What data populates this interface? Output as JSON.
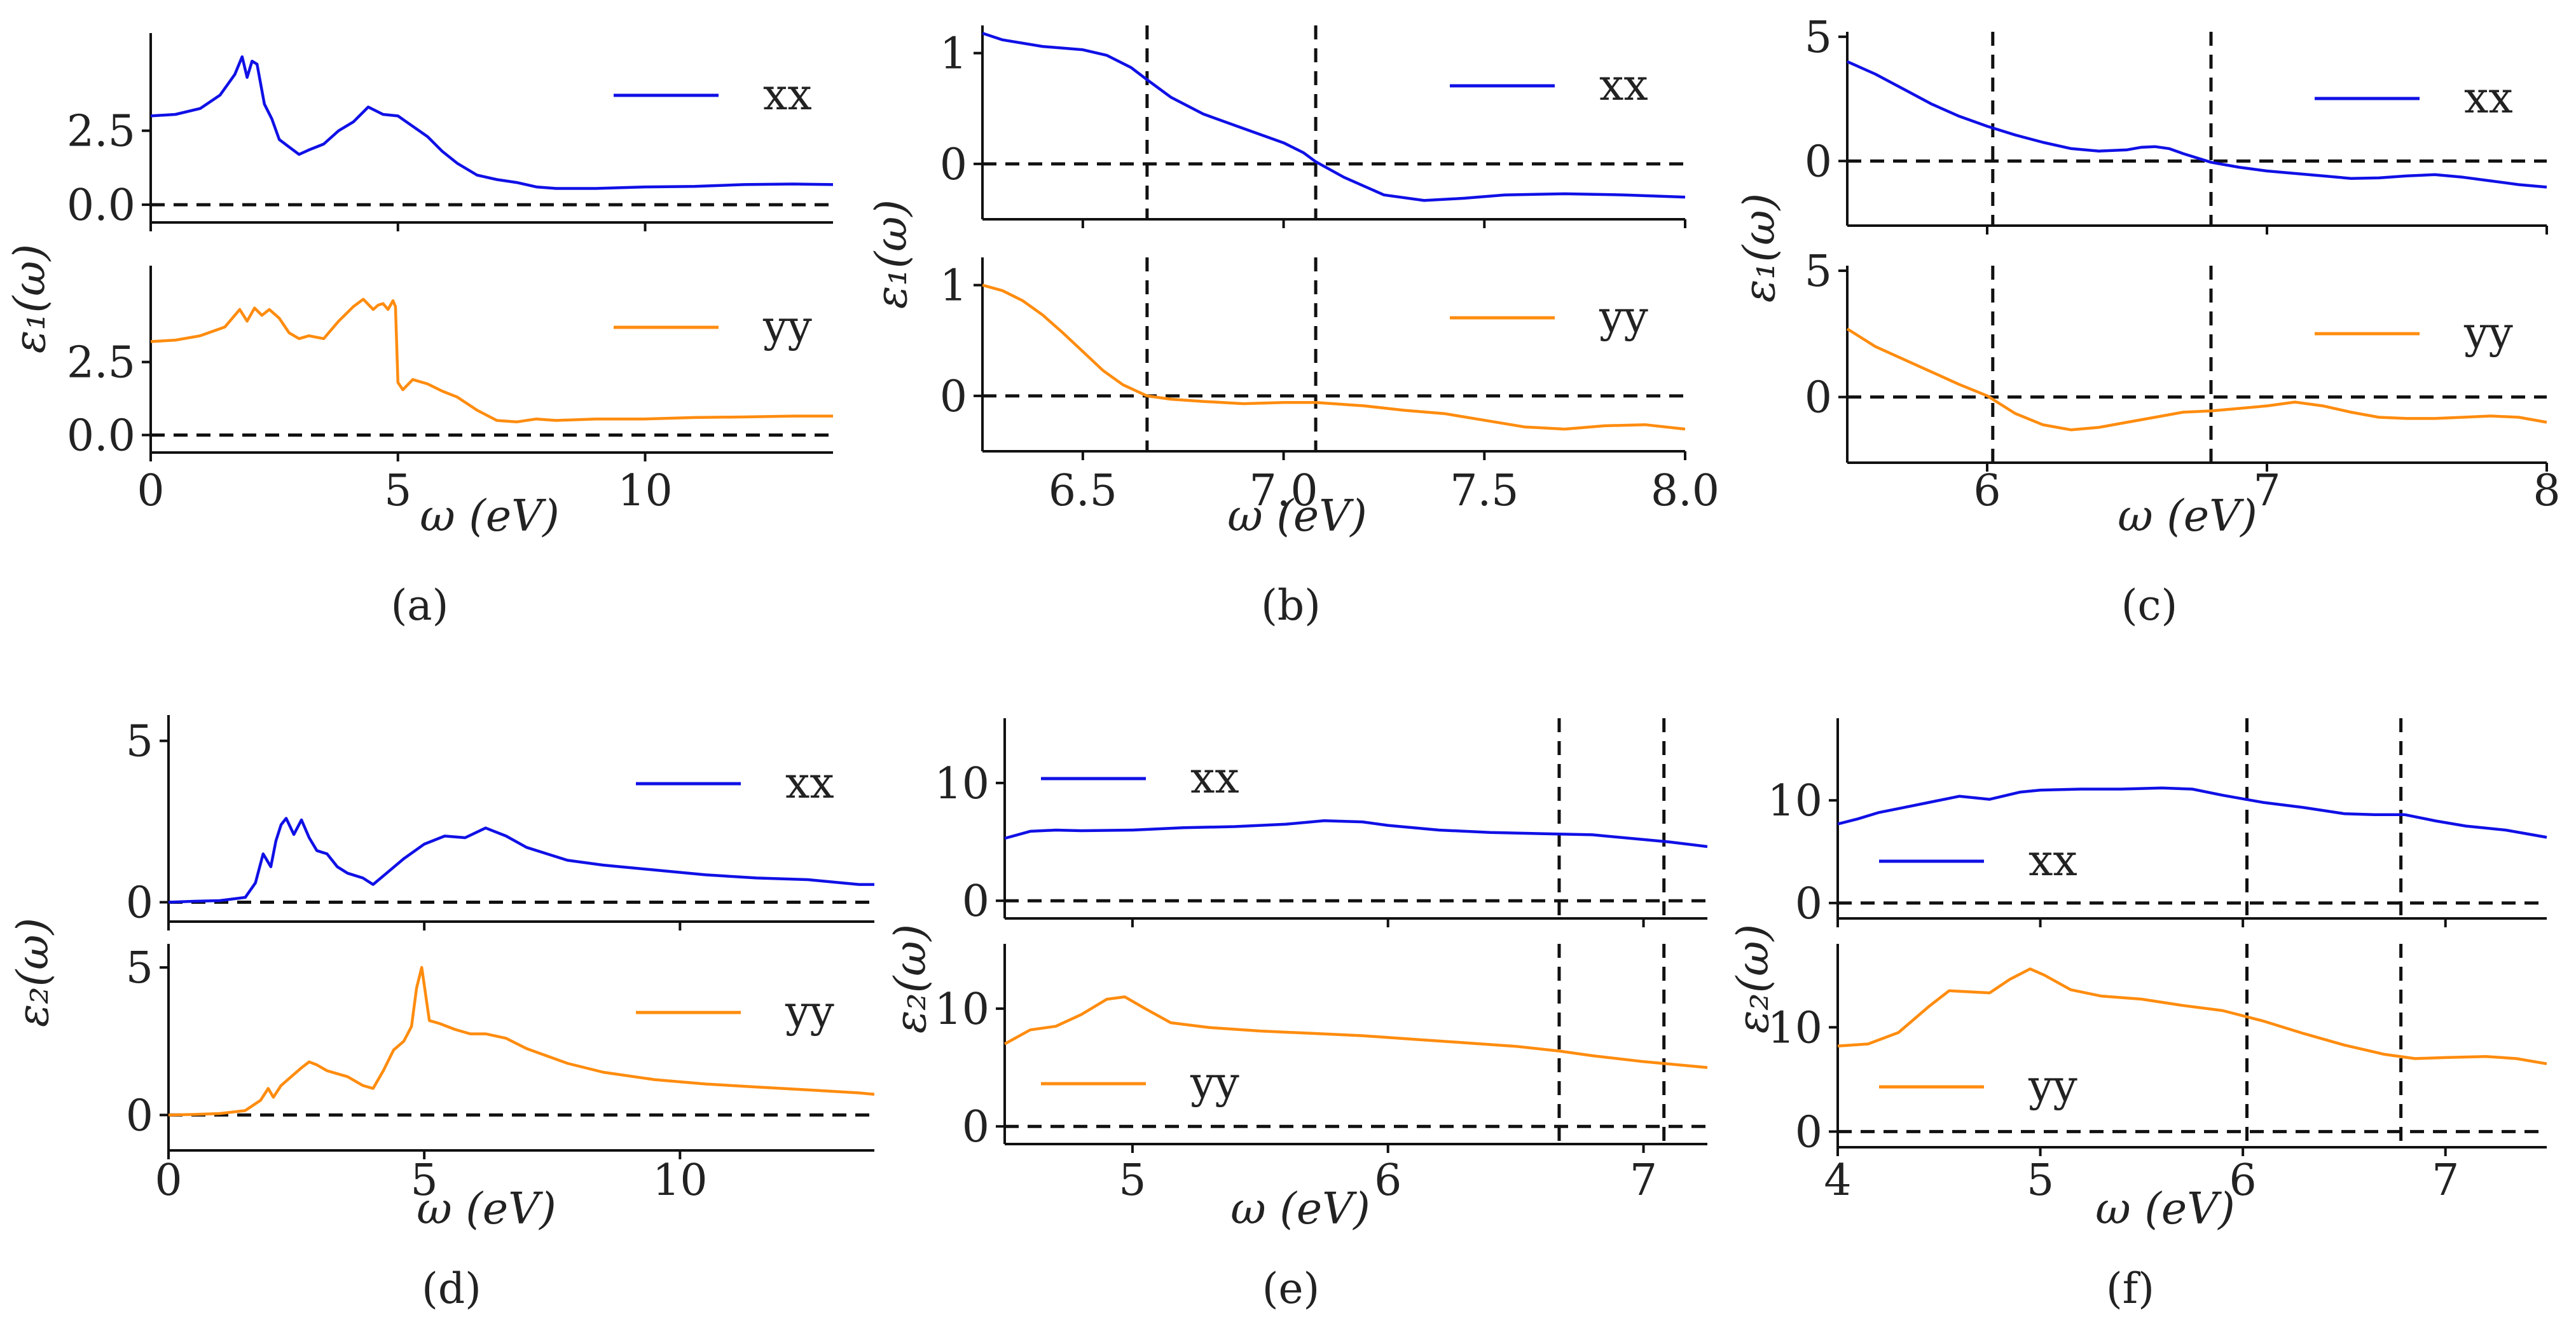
{
  "colors": {
    "xx": "#1010e6",
    "yy": "#ff8c0f",
    "axis": "#111111",
    "dash": "#111111"
  },
  "labels": {
    "eps1": "ε₁(ω)",
    "eps2": "ε₂(ω)",
    "omega": "ω (eV)"
  },
  "chart_data": [
    {
      "id": "a",
      "caption": "(a)",
      "type": "line",
      "xlim": [
        0,
        13.8
      ],
      "xticks": [
        "0",
        "5",
        "10"
      ],
      "xtick_values": [
        0,
        5,
        10
      ],
      "xlabel": "ω (eV)",
      "ylabel": "ε₁(ω)",
      "vlines": [],
      "subplots": [
        {
          "series": "xx",
          "legend": "xx",
          "ylim": [
            -0.6,
            5.8
          ],
          "yticks": [
            "0.0",
            "2.5"
          ],
          "ytick_values": [
            0,
            2.5
          ],
          "x": [
            0,
            0.5,
            1,
            1.4,
            1.7,
            1.85,
            1.95,
            2.05,
            2.15,
            2.3,
            2.45,
            2.6,
            2.8,
            3.0,
            3.2,
            3.5,
            3.8,
            4.1,
            4.4,
            4.7,
            5.0,
            5.3,
            5.6,
            5.9,
            6.2,
            6.6,
            7.0,
            7.4,
            7.8,
            8.2,
            9,
            10,
            11,
            12,
            13,
            13.8
          ],
          "y": [
            3.0,
            3.05,
            3.25,
            3.7,
            4.4,
            5.0,
            4.3,
            4.85,
            4.75,
            3.4,
            2.9,
            2.2,
            1.95,
            1.7,
            1.85,
            2.05,
            2.5,
            2.8,
            3.3,
            3.05,
            3.0,
            2.65,
            2.3,
            1.8,
            1.4,
            1.0,
            0.85,
            0.75,
            0.6,
            0.55,
            0.55,
            0.6,
            0.62,
            0.68,
            0.7,
            0.68
          ]
        },
        {
          "series": "yy",
          "legend": "yy",
          "ylim": [
            -0.6,
            5.8
          ],
          "yticks": [
            "0.0",
            "2.5"
          ],
          "ytick_values": [
            0,
            2.5
          ],
          "x": [
            0,
            0.5,
            1,
            1.5,
            1.8,
            1.95,
            2.1,
            2.25,
            2.4,
            2.6,
            2.8,
            3.0,
            3.2,
            3.5,
            3.8,
            4.1,
            4.3,
            4.5,
            4.6,
            4.7,
            4.8,
            4.9,
            4.95,
            5.0,
            5.1,
            5.3,
            5.6,
            5.9,
            6.2,
            6.6,
            7.0,
            7.4,
            7.8,
            8.2,
            9,
            10,
            11,
            12,
            13,
            13.8
          ],
          "y": [
            3.2,
            3.25,
            3.4,
            3.7,
            4.3,
            3.9,
            4.35,
            4.1,
            4.3,
            4.0,
            3.5,
            3.3,
            3.4,
            3.3,
            3.9,
            4.4,
            4.65,
            4.3,
            4.45,
            4.5,
            4.3,
            4.6,
            4.4,
            1.8,
            1.55,
            1.9,
            1.75,
            1.5,
            1.3,
            0.85,
            0.5,
            0.45,
            0.55,
            0.5,
            0.55,
            0.55,
            0.6,
            0.62,
            0.65,
            0.65
          ]
        }
      ]
    },
    {
      "id": "b",
      "caption": "(b)",
      "type": "line",
      "xlim": [
        6.25,
        8.0
      ],
      "xticks": [
        "6.5",
        "7.0",
        "7.5",
        "8.0"
      ],
      "xtick_values": [
        6.5,
        7.0,
        7.5,
        8.0
      ],
      "xlabel": "ω (eV)",
      "ylabel": "ε₁(ω)",
      "vlines": [
        6.66,
        7.08
      ],
      "subplots": [
        {
          "series": "xx",
          "legend": "xx",
          "ylim": [
            -0.5,
            1.25
          ],
          "yticks": [
            "0",
            "1"
          ],
          "ytick_values": [
            0,
            1
          ],
          "x": [
            6.25,
            6.3,
            6.4,
            6.5,
            6.56,
            6.62,
            6.66,
            6.72,
            6.8,
            6.9,
            7.0,
            7.05,
            7.08,
            7.15,
            7.25,
            7.35,
            7.45,
            7.55,
            7.7,
            7.85,
            8.0
          ],
          "y": [
            1.18,
            1.12,
            1.06,
            1.03,
            0.98,
            0.87,
            0.76,
            0.6,
            0.45,
            0.32,
            0.19,
            0.1,
            0.02,
            -0.12,
            -0.28,
            -0.33,
            -0.31,
            -0.28,
            -0.27,
            -0.28,
            -0.3
          ]
        },
        {
          "series": "yy",
          "legend": "yy",
          "ylim": [
            -0.5,
            1.25
          ],
          "yticks": [
            "0",
            "1"
          ],
          "ytick_values": [
            0,
            1
          ],
          "x": [
            6.25,
            6.3,
            6.35,
            6.4,
            6.45,
            6.5,
            6.55,
            6.6,
            6.66,
            6.72,
            6.8,
            6.9,
            7.0,
            7.08,
            7.2,
            7.3,
            7.4,
            7.5,
            7.6,
            7.7,
            7.8,
            7.9,
            8.0
          ],
          "y": [
            1.0,
            0.95,
            0.86,
            0.73,
            0.57,
            0.4,
            0.23,
            0.1,
            0.0,
            -0.03,
            -0.05,
            -0.07,
            -0.06,
            -0.06,
            -0.09,
            -0.13,
            -0.16,
            -0.22,
            -0.28,
            -0.3,
            -0.27,
            -0.26,
            -0.3
          ]
        }
      ]
    },
    {
      "id": "c",
      "caption": "(c)",
      "type": "line",
      "xlim": [
        5.5,
        8.0
      ],
      "xticks": [
        "6",
        "7",
        "8"
      ],
      "xtick_values": [
        6,
        7,
        8
      ],
      "xlabel": "ω (eV)",
      "ylabel": "ε₁(ω)",
      "vlines": [
        6.02,
        6.8
      ],
      "subplots": [
        {
          "series": "xx",
          "legend": "xx",
          "ylim": [
            -2.6,
            5.2
          ],
          "yticks": [
            "0",
            "5"
          ],
          "ytick_values": [
            0,
            5
          ],
          "x": [
            5.5,
            5.6,
            5.7,
            5.8,
            5.9,
            6.0,
            6.1,
            6.2,
            6.3,
            6.4,
            6.5,
            6.55,
            6.6,
            6.65,
            6.7,
            6.8,
            6.9,
            7.0,
            7.1,
            7.2,
            7.3,
            7.4,
            7.5,
            7.6,
            7.7,
            7.8,
            7.9,
            8.0
          ],
          "y": [
            4.0,
            3.5,
            2.9,
            2.3,
            1.8,
            1.4,
            1.05,
            0.75,
            0.5,
            0.4,
            0.45,
            0.55,
            0.58,
            0.5,
            0.3,
            -0.05,
            -0.25,
            -0.4,
            -0.5,
            -0.6,
            -0.7,
            -0.68,
            -0.6,
            -0.55,
            -0.65,
            -0.8,
            -0.95,
            -1.05
          ]
        },
        {
          "series": "yy",
          "legend": "yy",
          "ylim": [
            -2.6,
            5.2
          ],
          "yticks": [
            "0",
            "5"
          ],
          "ytick_values": [
            0,
            5
          ],
          "x": [
            5.5,
            5.6,
            5.7,
            5.8,
            5.9,
            6.0,
            6.05,
            6.1,
            6.2,
            6.3,
            6.4,
            6.5,
            6.6,
            6.7,
            6.8,
            6.9,
            7.0,
            7.1,
            7.2,
            7.3,
            7.4,
            7.5,
            7.6,
            7.7,
            7.8,
            7.9,
            8.0
          ],
          "y": [
            2.7,
            2.0,
            1.5,
            1.0,
            0.5,
            0.05,
            -0.3,
            -0.65,
            -1.1,
            -1.3,
            -1.2,
            -1.0,
            -0.8,
            -0.6,
            -0.55,
            -0.45,
            -0.35,
            -0.2,
            -0.35,
            -0.6,
            -0.8,
            -0.85,
            -0.85,
            -0.8,
            -0.75,
            -0.8,
            -1.0
          ]
        }
      ]
    },
    {
      "id": "d",
      "caption": "(d)",
      "type": "line",
      "xlim": [
        0,
        13.8
      ],
      "xticks": [
        "0",
        "5",
        "10"
      ],
      "xtick_values": [
        0,
        5,
        10
      ],
      "xlabel": "ω (eV)",
      "ylabel": "ε₂(ω)",
      "vlines": [],
      "subplots": [
        {
          "series": "xx",
          "legend": "xx",
          "ylim": [
            -0.6,
            5.8
          ],
          "yticks": [
            "0",
            "5"
          ],
          "ytick_values": [
            0,
            5
          ],
          "x": [
            0,
            0.5,
            1.0,
            1.5,
            1.7,
            1.85,
            2.0,
            2.1,
            2.2,
            2.3,
            2.45,
            2.6,
            2.75,
            2.9,
            3.1,
            3.3,
            3.5,
            3.8,
            4.0,
            4.3,
            4.6,
            5.0,
            5.4,
            5.8,
            6.2,
            6.6,
            7.0,
            7.4,
            7.8,
            8.5,
            9.5,
            10.5,
            11.5,
            12.5,
            13.5,
            13.8
          ],
          "y": [
            0.0,
            0.03,
            0.05,
            0.15,
            0.6,
            1.5,
            1.1,
            1.9,
            2.4,
            2.6,
            2.1,
            2.55,
            2.0,
            1.6,
            1.5,
            1.1,
            0.9,
            0.75,
            0.55,
            0.95,
            1.35,
            1.8,
            2.05,
            2.0,
            2.3,
            2.05,
            1.7,
            1.5,
            1.3,
            1.15,
            1.0,
            0.85,
            0.75,
            0.7,
            0.55,
            0.55
          ]
        },
        {
          "series": "yy",
          "legend": "yy",
          "ylim": [
            -1.2,
            5.8
          ],
          "yticks": [
            "0",
            "5"
          ],
          "ytick_values": [
            0,
            5
          ],
          "x": [
            0,
            0.5,
            1.0,
            1.5,
            1.8,
            1.95,
            2.05,
            2.2,
            2.4,
            2.6,
            2.75,
            2.9,
            3.1,
            3.3,
            3.5,
            3.8,
            4.0,
            4.2,
            4.4,
            4.6,
            4.75,
            4.85,
            4.95,
            5.1,
            5.3,
            5.6,
            5.9,
            6.2,
            6.6,
            7.0,
            7.4,
            7.8,
            8.5,
            9.5,
            10.5,
            11.5,
            12.5,
            13.5,
            13.8
          ],
          "y": [
            0.0,
            0.02,
            0.05,
            0.15,
            0.5,
            0.9,
            0.6,
            1.0,
            1.3,
            1.6,
            1.8,
            1.7,
            1.5,
            1.4,
            1.3,
            1.0,
            0.9,
            1.5,
            2.2,
            2.5,
            3.0,
            4.3,
            5.0,
            3.2,
            3.1,
            2.9,
            2.75,
            2.75,
            2.6,
            2.25,
            2.0,
            1.75,
            1.45,
            1.2,
            1.05,
            0.95,
            0.85,
            0.75,
            0.7
          ]
        }
      ]
    },
    {
      "id": "e",
      "caption": "(e)",
      "type": "line",
      "xlim": [
        4.5,
        7.25
      ],
      "xticks": [
        "5",
        "6",
        "7"
      ],
      "xtick_values": [
        5,
        6,
        7
      ],
      "xlabel": "ω (eV)",
      "ylabel": "ε₂(ω)",
      "vlines": [
        6.67,
        7.08
      ],
      "subplots": [
        {
          "series": "xx",
          "legend": "xx",
          "ylim": [
            -1.5,
            15.5
          ],
          "yticks": [
            "0",
            "10"
          ],
          "ytick_values": [
            0,
            10
          ],
          "x": [
            4.5,
            4.6,
            4.7,
            4.8,
            5.0,
            5.2,
            5.4,
            5.6,
            5.75,
            5.9,
            6.0,
            6.2,
            6.4,
            6.6,
            6.8,
            7.0,
            7.1,
            7.25
          ],
          "y": [
            5.3,
            5.9,
            6.0,
            5.95,
            6.0,
            6.2,
            6.3,
            6.5,
            6.8,
            6.7,
            6.4,
            6.0,
            5.8,
            5.7,
            5.6,
            5.2,
            5.0,
            4.6
          ]
        },
        {
          "series": "yy",
          "legend": "yy",
          "ylim": [
            -1.5,
            15.5
          ],
          "yticks": [
            "0",
            "10"
          ],
          "ytick_values": [
            0,
            10
          ],
          "x": [
            4.5,
            4.6,
            4.7,
            4.8,
            4.9,
            4.97,
            5.05,
            5.15,
            5.3,
            5.5,
            5.7,
            5.9,
            6.1,
            6.3,
            6.5,
            6.67,
            6.8,
            7.0,
            7.1,
            7.25
          ],
          "y": [
            7.0,
            8.2,
            8.5,
            9.5,
            10.8,
            11.0,
            10.0,
            8.8,
            8.4,
            8.1,
            7.9,
            7.7,
            7.4,
            7.1,
            6.8,
            6.4,
            6.0,
            5.5,
            5.3,
            5.0
          ]
        }
      ]
    },
    {
      "id": "f",
      "caption": "(f)",
      "type": "line",
      "xlim": [
        4.0,
        7.5
      ],
      "xticks": [
        "4",
        "5",
        "6",
        "7"
      ],
      "xtick_values": [
        4,
        5,
        6,
        7
      ],
      "xlabel": "ω (eV)",
      "ylabel": "ε₂(ω)",
      "vlines": [
        6.02,
        6.78
      ],
      "subplots": [
        {
          "series": "xx",
          "legend": "xx",
          "ylim": [
            -1.5,
            18.0
          ],
          "yticks": [
            "0",
            "10"
          ],
          "ytick_values": [
            0,
            10
          ],
          "x": [
            4.0,
            4.1,
            4.2,
            4.3,
            4.45,
            4.6,
            4.75,
            4.9,
            5.0,
            5.2,
            5.4,
            5.6,
            5.75,
            5.9,
            6.1,
            6.3,
            6.5,
            6.65,
            6.8,
            6.95,
            7.1,
            7.3,
            7.5
          ],
          "y": [
            7.7,
            8.2,
            8.8,
            9.2,
            9.8,
            10.4,
            10.1,
            10.8,
            11.0,
            11.1,
            11.1,
            11.2,
            11.1,
            10.5,
            9.8,
            9.3,
            8.7,
            8.6,
            8.6,
            8.0,
            7.5,
            7.1,
            6.4
          ]
        },
        {
          "series": "yy",
          "legend": "yy",
          "ylim": [
            -1.5,
            18.0
          ],
          "yticks": [
            "0",
            "10"
          ],
          "ytick_values": [
            0,
            10
          ],
          "x": [
            4.0,
            4.15,
            4.3,
            4.45,
            4.55,
            4.65,
            4.75,
            4.85,
            4.95,
            5.02,
            5.15,
            5.3,
            5.5,
            5.7,
            5.9,
            6.1,
            6.3,
            6.5,
            6.7,
            6.85,
            7.0,
            7.2,
            7.35,
            7.5
          ],
          "y": [
            8.2,
            8.4,
            9.5,
            12.0,
            13.5,
            13.4,
            13.3,
            14.6,
            15.6,
            15.0,
            13.6,
            13.0,
            12.7,
            12.1,
            11.6,
            10.6,
            9.4,
            8.3,
            7.4,
            7.0,
            7.1,
            7.2,
            7.0,
            6.5
          ]
        }
      ]
    }
  ]
}
